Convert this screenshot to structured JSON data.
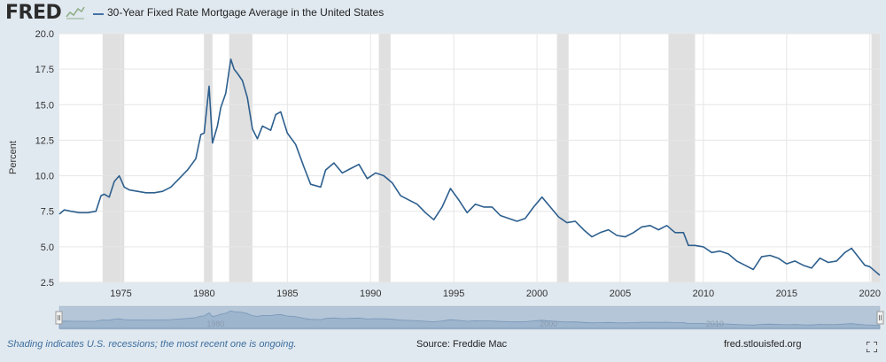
{
  "header": {
    "logo_text": "FRED",
    "title": "30-Year Fixed Rate Mortgage Average in the United States"
  },
  "footer": {
    "note": "Shading indicates U.S. recessions; the most recent one is ongoing.",
    "source": "Source: Freddie Mac",
    "site": "fred.stlouisfed.org"
  },
  "colors": {
    "line": "#2d5f8e",
    "recession": "#e0e0e0",
    "background": "#e1e9f0",
    "plot": "#ffffff",
    "navigator": "#b7c9dc"
  },
  "icons": [
    "fred-logo-chart-icon",
    "fullscreen-icon",
    "navigator-handle-icon"
  ],
  "chart_data": {
    "type": "line",
    "title": "30-Year Fixed Rate Mortgage Average in the United States",
    "xlabel": "",
    "ylabel": "Percent",
    "ylim": [
      2.5,
      20.0
    ],
    "xlim": [
      1971.3,
      2020.6
    ],
    "yticks": [
      "2.5",
      "5.0",
      "7.5",
      "10.0",
      "12.5",
      "15.0",
      "17.5",
      "20.0"
    ],
    "xticks": [
      "1975",
      "1980",
      "1985",
      "1990",
      "1995",
      "2000",
      "2005",
      "2010",
      "2015",
      "2020"
    ],
    "navigator_ticks": [
      "1980",
      "2000",
      "2010"
    ],
    "grid": true,
    "legend": "top-left",
    "recessions": [
      [
        1973.9,
        1975.2
      ],
      [
        1980.0,
        1980.5
      ],
      [
        1981.5,
        1982.9
      ],
      [
        1990.5,
        1991.2
      ],
      [
        2001.2,
        2001.9
      ],
      [
        2007.9,
        2009.5
      ],
      [
        2020.1,
        2020.6
      ]
    ],
    "series": [
      {
        "name": "30-Year Fixed Rate Mortgage Average in the United States",
        "x": [
          1971.3,
          1971.6,
          1972.0,
          1972.5,
          1973.0,
          1973.5,
          1973.8,
          1974.0,
          1974.3,
          1974.6,
          1974.9,
          1975.2,
          1975.5,
          1976.0,
          1976.5,
          1977.0,
          1977.5,
          1978.0,
          1978.5,
          1979.0,
          1979.5,
          1979.8,
          1980.0,
          1980.3,
          1980.5,
          1980.8,
          1981.0,
          1981.3,
          1981.6,
          1981.8,
          1982.0,
          1982.3,
          1982.6,
          1982.9,
          1983.2,
          1983.5,
          1984.0,
          1984.3,
          1984.6,
          1985.0,
          1985.5,
          1986.0,
          1986.4,
          1987.0,
          1987.3,
          1987.8,
          1988.3,
          1988.8,
          1989.3,
          1989.8,
          1990.3,
          1990.8,
          1991.3,
          1991.8,
          1992.3,
          1992.8,
          1993.3,
          1993.8,
          1994.3,
          1994.8,
          1995.3,
          1995.8,
          1996.3,
          1996.8,
          1997.3,
          1997.8,
          1998.3,
          1998.8,
          1999.3,
          1999.8,
          2000.3,
          2000.8,
          2001.3,
          2001.8,
          2002.3,
          2002.8,
          2003.3,
          2003.8,
          2004.3,
          2004.8,
          2005.3,
          2005.8,
          2006.3,
          2006.8,
          2007.3,
          2007.8,
          2008.3,
          2008.8,
          2009.1,
          2009.5,
          2010.0,
          2010.5,
          2011.0,
          2011.5,
          2012.0,
          2012.5,
          2013.0,
          2013.5,
          2014.0,
          2014.5,
          2015.0,
          2015.5,
          2016.0,
          2016.5,
          2017.0,
          2017.5,
          2018.0,
          2018.5,
          2018.9,
          2019.3,
          2019.7,
          2020.0,
          2020.3,
          2020.6
        ],
        "values": [
          7.3,
          7.6,
          7.5,
          7.4,
          7.4,
          7.5,
          8.6,
          8.7,
          8.5,
          9.6,
          10.0,
          9.2,
          9.0,
          8.9,
          8.8,
          8.8,
          8.9,
          9.2,
          9.8,
          10.4,
          11.2,
          12.9,
          13.0,
          16.3,
          12.3,
          13.5,
          14.8,
          15.8,
          18.2,
          17.5,
          17.2,
          16.7,
          15.5,
          13.3,
          12.6,
          13.5,
          13.2,
          14.3,
          14.5,
          13.0,
          12.2,
          10.6,
          9.4,
          9.2,
          10.4,
          10.9,
          10.2,
          10.5,
          10.8,
          9.8,
          10.2,
          10.0,
          9.5,
          8.6,
          8.3,
          8.0,
          7.4,
          6.9,
          7.8,
          9.1,
          8.3,
          7.4,
          8.0,
          7.8,
          7.8,
          7.2,
          7.0,
          6.8,
          7.0,
          7.8,
          8.5,
          7.8,
          7.1,
          6.7,
          6.8,
          6.2,
          5.7,
          6.0,
          6.2,
          5.8,
          5.7,
          6.0,
          6.4,
          6.5,
          6.2,
          6.5,
          6.0,
          6.0,
          5.1,
          5.1,
          5.0,
          4.6,
          4.7,
          4.5,
          4.0,
          3.7,
          3.4,
          4.3,
          4.4,
          4.2,
          3.8,
          4.0,
          3.7,
          3.5,
          4.2,
          3.9,
          4.0,
          4.6,
          4.9,
          4.3,
          3.7,
          3.6,
          3.3,
          3.0
        ]
      }
    ]
  }
}
